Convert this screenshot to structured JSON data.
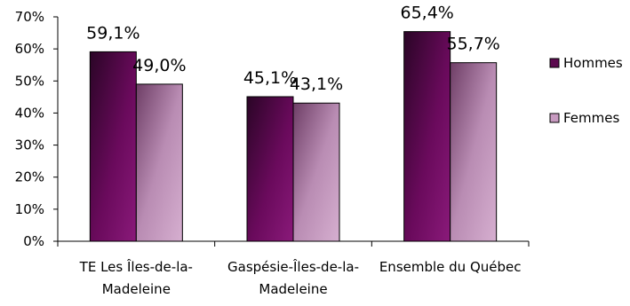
{
  "chart_data": {
    "type": "bar",
    "categories": [
      [
        "TE Les Îles-de-la-",
        "Madeleine"
      ],
      [
        "Gaspésie-Îles-de-la-",
        "Madeleine"
      ],
      [
        "Ensemble du Québec"
      ]
    ],
    "series": [
      {
        "name": "Hommes",
        "values": [
          59.1,
          45.1,
          65.4
        ],
        "labels": [
          "59,1%",
          "45,1%",
          "65,4%"
        ],
        "color": "#5c0a4f"
      },
      {
        "name": "Femmes",
        "values": [
          49.0,
          43.1,
          55.7
        ],
        "labels": [
          "49,0%",
          "43,1%",
          "55,7%"
        ],
        "color": "#c79ac0"
      }
    ],
    "yticks": [
      "0%",
      "10%",
      "20%",
      "30%",
      "40%",
      "50%",
      "60%",
      "70%"
    ],
    "ylim": [
      0,
      70
    ],
    "grid": false,
    "legend": "right"
  }
}
